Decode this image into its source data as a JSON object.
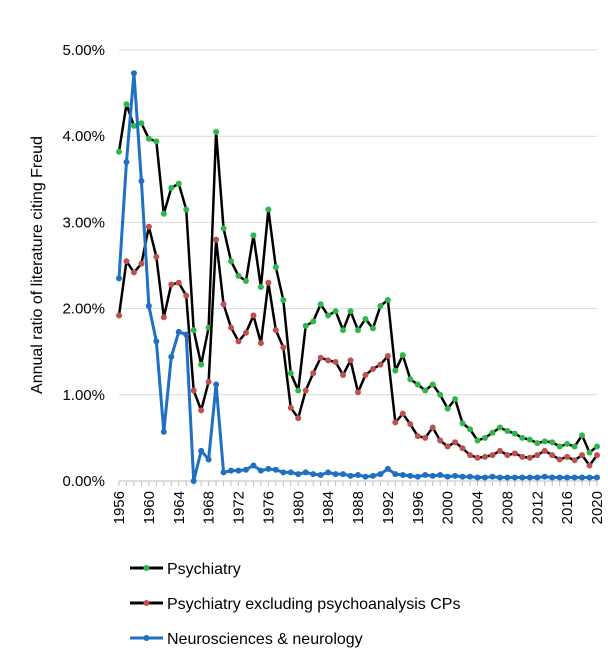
{
  "chart_data": {
    "type": "line",
    "ylabel": "Annual ratio of literature citing Freud",
    "ylim": [
      0,
      5
    ],
    "y_unit": "%",
    "y_ticks": [
      "0.00%",
      "1.00%",
      "2.00%",
      "3.00%",
      "4.00%",
      "5.00%"
    ],
    "y_tick_values": [
      0,
      1,
      2,
      3,
      4,
      5
    ],
    "xlim": [
      1956,
      2020
    ],
    "x_ticks": [
      "1956",
      "1960",
      "1964",
      "1968",
      "1972",
      "1976",
      "1980",
      "1984",
      "1988",
      "1992",
      "1996",
      "2000",
      "2004",
      "2008",
      "2012",
      "2016",
      "2020"
    ],
    "x_tick_values": [
      1956,
      1960,
      1964,
      1968,
      1972,
      1976,
      1980,
      1984,
      1988,
      1992,
      1996,
      2000,
      2004,
      2008,
      2012,
      2016,
      2020
    ],
    "x_tick_minor_step": 1,
    "grid": "horizontal",
    "legend_position": "bottom",
    "x": [
      1956,
      1957,
      1958,
      1959,
      1960,
      1961,
      1962,
      1963,
      1964,
      1965,
      1966,
      1967,
      1968,
      1969,
      1970,
      1971,
      1972,
      1973,
      1974,
      1975,
      1976,
      1977,
      1978,
      1979,
      1980,
      1981,
      1982,
      1983,
      1984,
      1985,
      1986,
      1987,
      1988,
      1989,
      1990,
      1991,
      1992,
      1993,
      1994,
      1995,
      1996,
      1997,
      1998,
      1999,
      2000,
      2001,
      2002,
      2003,
      2004,
      2005,
      2006,
      2007,
      2008,
      2009,
      2010,
      2011,
      2012,
      2013,
      2014,
      2015,
      2016,
      2017,
      2018,
      2019,
      2020
    ],
    "series": [
      {
        "name": "Psychiatry",
        "line_color": "#000000",
        "marker_color": "#2eb84a",
        "values": [
          3.82,
          4.37,
          4.12,
          4.15,
          3.97,
          3.94,
          3.1,
          3.4,
          3.45,
          3.15,
          1.75,
          1.35,
          1.78,
          4.05,
          2.93,
          2.55,
          2.38,
          2.32,
          2.85,
          2.25,
          3.15,
          2.48,
          2.1,
          1.25,
          1.05,
          1.8,
          1.85,
          2.05,
          1.92,
          1.97,
          1.75,
          1.97,
          1.75,
          1.88,
          1.77,
          2.03,
          2.1,
          1.28,
          1.46,
          1.18,
          1.12,
          1.05,
          1.12,
          1.0,
          0.84,
          0.95,
          0.67,
          0.6,
          0.47,
          0.5,
          0.56,
          0.62,
          0.58,
          0.55,
          0.5,
          0.48,
          0.44,
          0.46,
          0.45,
          0.4,
          0.43,
          0.4,
          0.53,
          0.33,
          0.4
        ]
      },
      {
        "name": "Psychiatry excluding psychoanalysis CPs",
        "line_color": "#000000",
        "marker_color": "#c0504d",
        "values": [
          1.92,
          2.55,
          2.42,
          2.52,
          2.95,
          2.6,
          1.9,
          2.28,
          2.3,
          2.15,
          1.05,
          0.82,
          1.15,
          2.8,
          2.05,
          1.78,
          1.62,
          1.72,
          1.92,
          1.6,
          2.3,
          1.75,
          1.55,
          0.85,
          0.73,
          1.05,
          1.25,
          1.43,
          1.4,
          1.38,
          1.23,
          1.4,
          1.03,
          1.23,
          1.3,
          1.35,
          1.45,
          0.68,
          0.78,
          0.66,
          0.52,
          0.5,
          0.62,
          0.47,
          0.4,
          0.45,
          0.38,
          0.3,
          0.27,
          0.28,
          0.3,
          0.35,
          0.3,
          0.32,
          0.28,
          0.27,
          0.3,
          0.35,
          0.3,
          0.25,
          0.28,
          0.24,
          0.3,
          0.18,
          0.3
        ]
      },
      {
        "name": "Neurosciences & neurology",
        "line_color": "#1f6fc4",
        "marker_color": "#1f6fc4",
        "values": [
          2.35,
          3.7,
          4.73,
          3.48,
          2.03,
          1.62,
          0.57,
          1.44,
          1.73,
          1.7,
          0.0,
          0.35,
          0.25,
          1.12,
          0.1,
          0.12,
          0.12,
          0.13,
          0.18,
          0.12,
          0.14,
          0.13,
          0.1,
          0.1,
          0.08,
          0.1,
          0.08,
          0.07,
          0.1,
          0.08,
          0.08,
          0.06,
          0.07,
          0.05,
          0.06,
          0.08,
          0.14,
          0.08,
          0.07,
          0.06,
          0.05,
          0.07,
          0.06,
          0.07,
          0.05,
          0.06,
          0.05,
          0.05,
          0.04,
          0.04,
          0.05,
          0.04,
          0.04,
          0.04,
          0.04,
          0.04,
          0.04,
          0.05,
          0.04,
          0.04,
          0.04,
          0.04,
          0.04,
          0.04,
          0.04
        ]
      }
    ]
  }
}
